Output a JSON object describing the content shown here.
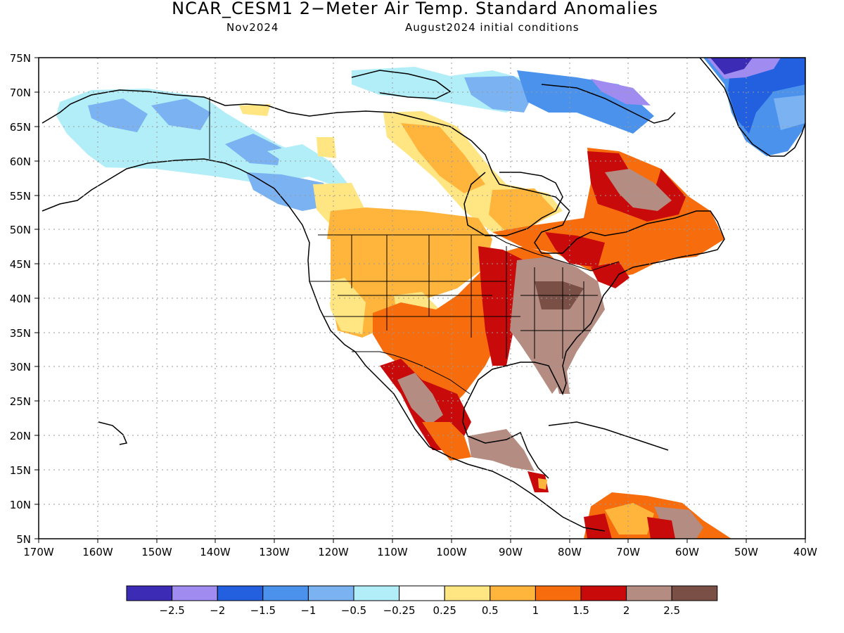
{
  "title": "NCAR_CESM1 2−Meter Air Temp. Standard Anomalies",
  "target_month": "Nov2024",
  "init_conditions": "August2024 initial conditions",
  "lat_labels": [
    "75N",
    "70N",
    "65N",
    "60N",
    "55N",
    "50N",
    "45N",
    "40N",
    "35N",
    "30N",
    "25N",
    "20N",
    "15N",
    "10N",
    "5N"
  ],
  "lon_labels": [
    "170W",
    "160W",
    "150W",
    "140W",
    "130W",
    "120W",
    "110W",
    "100W",
    "90W",
    "80W",
    "70W",
    "60W",
    "50W",
    "40W"
  ],
  "legend": {
    "colors": [
      "#3c2bb4",
      "#a08cf0",
      "#2260e0",
      "#4a92ec",
      "#7ab2f2",
      "#b2eef8",
      "#ffffff",
      "#ffe682",
      "#ffb43c",
      "#f76c0c",
      "#c80a0a",
      "#b48c82",
      "#7a5046"
    ],
    "labels": [
      "−2.5",
      "−2",
      "−1.5",
      "−1",
      "−0.5",
      "−0.25",
      "0.25",
      "0.5",
      "1",
      "1.5",
      "2",
      "2.5"
    ]
  },
  "colors": {
    "neg_strong": "#3c2bb4",
    "neg_violet": "#a08cf0",
    "neg_blue": "#2260e0",
    "neg_mid": "#4a92ec",
    "neg_light": "#7ab2f2",
    "neg_pale": "#b2eef8",
    "neutral": "#ffffff",
    "pos_yellow": "#ffe682",
    "pos_orange": "#ffb43c",
    "pos_dark_orange": "#f76c0c",
    "pos_red": "#c80a0a",
    "pos_brown_light": "#b48c82",
    "pos_brown_dark": "#7a5046"
  }
}
